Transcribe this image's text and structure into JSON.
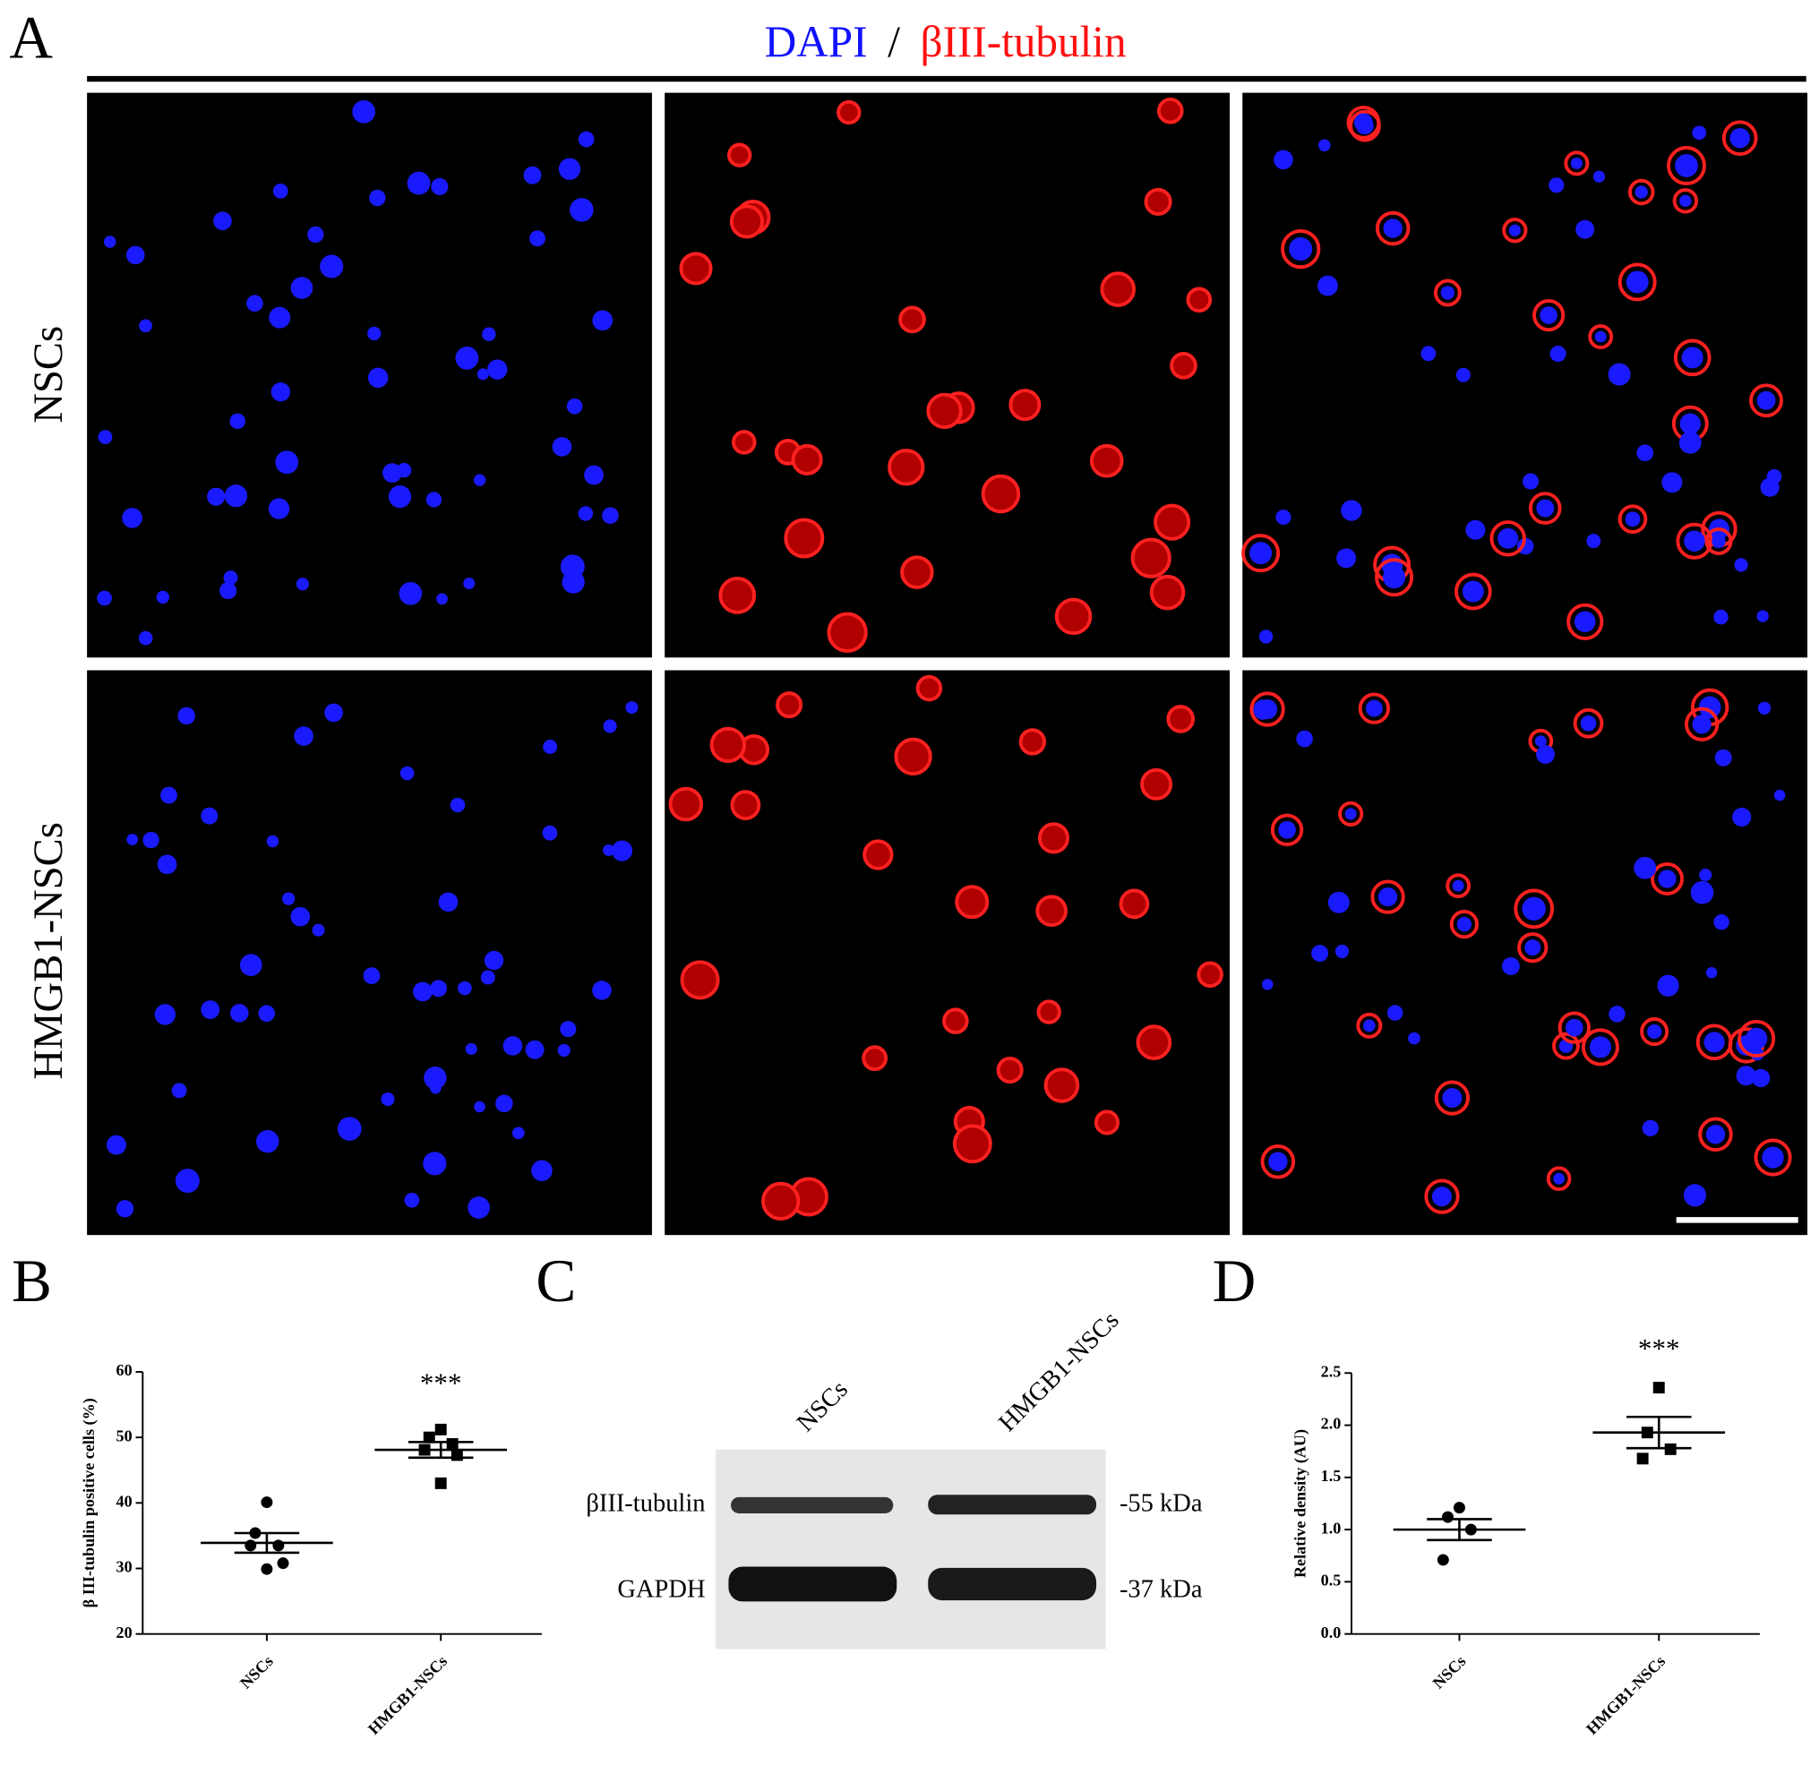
{
  "panel_a": {
    "label": "A",
    "title_dapi": "DAPI",
    "title_sep": "/",
    "title_tubulin": "βIII-tubulin",
    "rows": [
      "NSCs",
      "HMGB1-NSCs"
    ]
  },
  "panel_c": {
    "label": "C",
    "lanes": [
      "NSCs",
      "HMGB1-NSCs"
    ],
    "bands": [
      "βIII-tubulin",
      "GAPDH"
    ],
    "sizes": [
      "-55 kDa",
      "-37 kDa"
    ]
  },
  "chart_data": [
    {
      "type": "scatter",
      "panel_label": "B",
      "y_label": "β III-tubulin positive cells (%)",
      "categories": [
        "NSCs",
        "HMGB1-NSCs"
      ],
      "markers": [
        "circle",
        "square"
      ],
      "color": "#000000",
      "groups": [
        {
          "values": [
            40.1,
            35.4,
            33.5,
            33.5,
            30.8,
            29.9
          ],
          "mean": 33.9,
          "sem": 1.5
        },
        {
          "values": [
            51.2,
            50.0,
            49.0,
            48.1,
            47.3,
            43.0
          ],
          "mean": 48.1,
          "sem": 1.2
        }
      ],
      "annotation": "***",
      "ylim": [
        20,
        60
      ],
      "yticks": [
        20,
        30,
        40,
        50,
        60
      ]
    },
    {
      "type": "scatter",
      "panel_label": "D",
      "y_label": "Relative density (AU)",
      "categories": [
        "NSCs",
        "HMGB1-NSCs"
      ],
      "markers": [
        "circle",
        "square"
      ],
      "color": "#000000",
      "groups": [
        {
          "values": [
            1.21,
            1.12,
            1.0,
            0.71
          ],
          "mean": 1.0,
          "sem": 0.1
        },
        {
          "values": [
            2.36,
            1.93,
            1.77,
            1.68
          ],
          "mean": 1.93,
          "sem": 0.15
        }
      ],
      "annotation": "***",
      "ylim": [
        0,
        2.5
      ],
      "yticks": [
        {
          "value": 0,
          "label": "0.0"
        },
        0.5,
        {
          "value": 1,
          "label": "1.0"
        },
        1.5,
        {
          "value": 2,
          "label": "2.0"
        },
        2.5
      ]
    }
  ]
}
